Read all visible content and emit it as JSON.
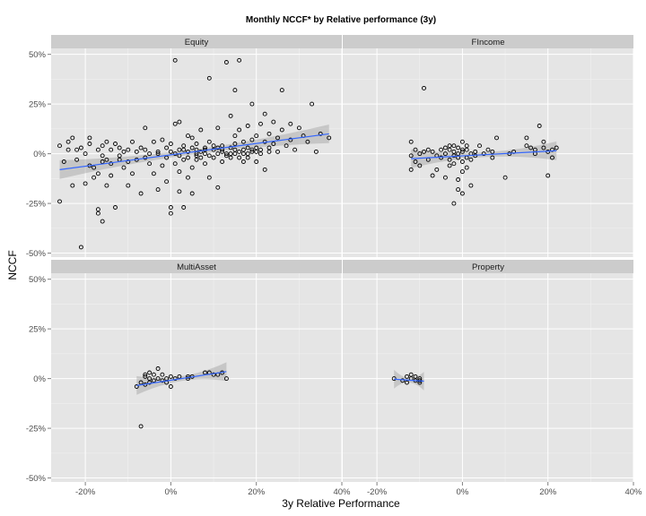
{
  "chart_data": {
    "type": "scatter",
    "title": "Monthly NCCF* by Relative performance (3y)",
    "xlabel": "3y Relative Performance",
    "ylabel": "NCCF",
    "xlim": [
      -0.28,
      0.4
    ],
    "ylim": [
      -0.52,
      0.53
    ],
    "x_ticks": [
      -0.2,
      0,
      0.2,
      0.4
    ],
    "x_tick_labels": [
      "-20%",
      "0%",
      "20%",
      "40%"
    ],
    "y_ticks": [
      -0.5,
      -0.25,
      0,
      0.25,
      0.5
    ],
    "y_tick_labels": [
      "-50%",
      "-25%",
      "0%",
      "25%",
      "50%"
    ],
    "grid": true,
    "fit_color": "#3366ff",
    "facets": [
      {
        "name": "Equity",
        "fit": {
          "x0": -0.26,
          "y0": -0.08,
          "x1": 0.37,
          "y1": 0.1
        },
        "points": [
          [
            -0.26,
            0.04
          ],
          [
            -0.26,
            -0.24
          ],
          [
            -0.25,
            -0.04
          ],
          [
            -0.24,
            0.02
          ],
          [
            -0.24,
            0.06
          ],
          [
            -0.23,
            -0.16
          ],
          [
            -0.23,
            0.08
          ],
          [
            -0.22,
            0.02
          ],
          [
            -0.22,
            -0.03
          ],
          [
            -0.21,
            -0.47
          ],
          [
            -0.21,
            0.03
          ],
          [
            -0.2,
            -0.15
          ],
          [
            -0.2,
            0.0
          ],
          [
            -0.19,
            -0.06
          ],
          [
            -0.19,
            0.05
          ],
          [
            -0.19,
            0.08
          ],
          [
            -0.18,
            -0.12
          ],
          [
            -0.18,
            -0.07
          ],
          [
            -0.17,
            -0.3
          ],
          [
            -0.17,
            -0.28
          ],
          [
            -0.17,
            0.02
          ],
          [
            -0.17,
            -0.1
          ],
          [
            -0.16,
            -0.04
          ],
          [
            -0.16,
            0.04
          ],
          [
            -0.16,
            -0.01
          ],
          [
            -0.16,
            -0.34
          ],
          [
            -0.15,
            0.06
          ],
          [
            -0.15,
            -0.03
          ],
          [
            -0.15,
            -0.16
          ],
          [
            -0.14,
            0.02
          ],
          [
            -0.14,
            -0.11
          ],
          [
            -0.14,
            -0.05
          ],
          [
            -0.13,
            -0.27
          ],
          [
            -0.13,
            0.05
          ],
          [
            -0.12,
            -0.03
          ],
          [
            -0.12,
            0.03
          ],
          [
            -0.11,
            -0.07
          ],
          [
            -0.11,
            0.01
          ],
          [
            -0.1,
            -0.16
          ],
          [
            -0.1,
            -0.04
          ],
          [
            -0.1,
            0.02
          ],
          [
            -0.09,
            -0.1
          ],
          [
            -0.09,
            0.06
          ],
          [
            -0.08,
            -0.03
          ],
          [
            -0.08,
            0.01
          ],
          [
            -0.07,
            -0.2
          ],
          [
            -0.07,
            0.03
          ],
          [
            -0.06,
            0.13
          ],
          [
            -0.06,
            -0.02
          ],
          [
            -0.05,
            -0.05
          ],
          [
            -0.05,
            0.0
          ],
          [
            -0.04,
            0.06
          ],
          [
            -0.04,
            -0.1
          ],
          [
            -0.03,
            -0.18
          ],
          [
            -0.03,
            0.01
          ],
          [
            -0.02,
            -0.06
          ],
          [
            -0.02,
            0.07
          ],
          [
            -0.01,
            -0.02
          ],
          [
            -0.01,
            0.03
          ],
          [
            -0.01,
            -0.14
          ],
          [
            0.0,
            -0.27
          ],
          [
            0.0,
            -0.3
          ],
          [
            0.0,
            0.01
          ],
          [
            0.0,
            0.05
          ],
          [
            0.01,
            0.47
          ],
          [
            0.01,
            -0.05
          ],
          [
            0.01,
            0.15
          ],
          [
            0.01,
            0.0
          ],
          [
            0.02,
            0.16
          ],
          [
            0.02,
            -0.09
          ],
          [
            0.02,
            0.02
          ],
          [
            0.02,
            -0.19
          ],
          [
            0.03,
            -0.03
          ],
          [
            0.03,
            0.04
          ],
          [
            0.03,
            -0.27
          ],
          [
            0.04,
            0.09
          ],
          [
            0.04,
            -0.12
          ],
          [
            0.04,
            0.01
          ],
          [
            0.04,
            -0.02
          ],
          [
            0.05,
            -0.07
          ],
          [
            0.05,
            0.03
          ],
          [
            0.05,
            0.08
          ],
          [
            0.05,
            -0.2
          ],
          [
            0.06,
            -0.03
          ],
          [
            0.06,
            0.0
          ],
          [
            0.06,
            0.05
          ],
          [
            0.06,
            0.02
          ],
          [
            0.07,
            0.01
          ],
          [
            0.07,
            -0.02
          ],
          [
            0.07,
            0.12
          ],
          [
            0.08,
            -0.05
          ],
          [
            0.08,
            0.03
          ],
          [
            0.08,
            0.0
          ],
          [
            0.09,
            0.38
          ],
          [
            0.09,
            -0.01
          ],
          [
            0.09,
            0.06
          ],
          [
            0.09,
            -0.12
          ],
          [
            0.1,
            0.02
          ],
          [
            0.1,
            0.04
          ],
          [
            0.1,
            -0.02
          ],
          [
            0.11,
            0.0
          ],
          [
            0.11,
            -0.17
          ],
          [
            0.11,
            0.13
          ],
          [
            0.12,
            0.02
          ],
          [
            0.12,
            -0.04
          ],
          [
            0.12,
            0.04
          ],
          [
            0.13,
            0.0
          ],
          [
            0.13,
            -0.01
          ],
          [
            0.13,
            0.46
          ],
          [
            0.14,
            0.19
          ],
          [
            0.14,
            -0.02
          ],
          [
            0.14,
            0.03
          ],
          [
            0.15,
            0.05
          ],
          [
            0.15,
            0.32
          ],
          [
            0.15,
            0.09
          ],
          [
            0.15,
            0.0
          ],
          [
            0.16,
            -0.02
          ],
          [
            0.16,
            0.01
          ],
          [
            0.16,
            0.12
          ],
          [
            0.16,
            0.47
          ],
          [
            0.17,
            -0.04
          ],
          [
            0.17,
            0.06
          ],
          [
            0.17,
            0.02
          ],
          [
            0.18,
            0.0
          ],
          [
            0.18,
            0.03
          ],
          [
            0.18,
            -0.02
          ],
          [
            0.18,
            0.14
          ],
          [
            0.19,
            0.01
          ],
          [
            0.19,
            0.25
          ],
          [
            0.19,
            0.07
          ],
          [
            0.2,
            0.09
          ],
          [
            0.2,
            -0.04
          ],
          [
            0.2,
            0.03
          ],
          [
            0.21,
            0.02
          ],
          [
            0.21,
            0.15
          ],
          [
            0.21,
            0.0
          ],
          [
            0.22,
            -0.08
          ],
          [
            0.22,
            0.06
          ],
          [
            0.22,
            0.2
          ],
          [
            0.23,
            0.03
          ],
          [
            0.23,
            0.1
          ],
          [
            0.24,
            0.05
          ],
          [
            0.24,
            0.16
          ],
          [
            0.25,
            0.01
          ],
          [
            0.25,
            0.08
          ],
          [
            0.26,
            0.32
          ],
          [
            0.26,
            0.12
          ],
          [
            0.27,
            0.04
          ],
          [
            0.28,
            0.15
          ],
          [
            0.28,
            0.07
          ],
          [
            0.29,
            0.02
          ],
          [
            0.3,
            0.13
          ],
          [
            0.31,
            0.09
          ],
          [
            0.32,
            0.06
          ],
          [
            0.33,
            0.25
          ],
          [
            0.34,
            0.01
          ],
          [
            0.35,
            0.1
          ],
          [
            0.37,
            0.08
          ],
          [
            -0.12,
            -0.01
          ],
          [
            -0.06,
            0.02
          ],
          [
            -0.03,
            0.0
          ],
          [
            0.02,
            -0.01
          ],
          [
            0.03,
            0.02
          ],
          [
            0.06,
            -0.01
          ],
          [
            0.08,
            0.02
          ],
          [
            0.11,
            0.03
          ],
          [
            0.12,
            0.01
          ],
          [
            0.14,
            0.0
          ],
          [
            0.15,
            0.02
          ],
          [
            0.17,
            0.0
          ],
          [
            0.19,
            0.02
          ],
          [
            0.2,
            0.01
          ],
          [
            0.23,
            0.01
          ]
        ]
      },
      {
        "name": "FIncome",
        "fit": {
          "x0": -0.12,
          "y0": -0.025,
          "x1": 0.22,
          "y1": 0.015
        },
        "points": [
          [
            -0.12,
            0.06
          ],
          [
            -0.12,
            -0.01
          ],
          [
            -0.12,
            -0.08
          ],
          [
            -0.11,
            0.02
          ],
          [
            -0.11,
            -0.04
          ],
          [
            -0.1,
            0.0
          ],
          [
            -0.1,
            -0.06
          ],
          [
            -0.09,
            0.33
          ],
          [
            -0.09,
            0.01
          ],
          [
            -0.08,
            -0.03
          ],
          [
            -0.08,
            0.02
          ],
          [
            -0.07,
            -0.11
          ],
          [
            -0.07,
            0.01
          ],
          [
            -0.06,
            -0.01
          ],
          [
            -0.06,
            -0.08
          ],
          [
            -0.05,
            0.02
          ],
          [
            -0.05,
            -0.02
          ],
          [
            -0.04,
            0.0
          ],
          [
            -0.04,
            -0.12
          ],
          [
            -0.04,
            0.03
          ],
          [
            -0.03,
            -0.03
          ],
          [
            -0.03,
            0.02
          ],
          [
            -0.03,
            -0.06
          ],
          [
            -0.02,
            0.01
          ],
          [
            -0.02,
            -0.01
          ],
          [
            -0.02,
            -0.25
          ],
          [
            -0.02,
            0.04
          ],
          [
            -0.01,
            -0.02
          ],
          [
            -0.01,
            0.0
          ],
          [
            -0.01,
            -0.13
          ],
          [
            -0.01,
            -0.18
          ],
          [
            -0.01,
            0.03
          ],
          [
            0.0,
            -0.04
          ],
          [
            0.0,
            0.01
          ],
          [
            0.0,
            -0.09
          ],
          [
            0.0,
            -0.2
          ],
          [
            0.0,
            0.06
          ],
          [
            0.01,
            -0.02
          ],
          [
            0.01,
            0.02
          ],
          [
            0.01,
            -0.07
          ],
          [
            0.02,
            0.0
          ],
          [
            0.02,
            -0.03
          ],
          [
            0.02,
            -0.16
          ],
          [
            0.03,
            0.01
          ],
          [
            0.03,
            -0.01
          ],
          [
            0.04,
            0.04
          ],
          [
            0.05,
            0.0
          ],
          [
            0.06,
            0.02
          ],
          [
            0.07,
            -0.02
          ],
          [
            0.07,
            0.01
          ],
          [
            0.08,
            0.08
          ],
          [
            0.1,
            -0.12
          ],
          [
            0.11,
            0.0
          ],
          [
            0.12,
            0.01
          ],
          [
            0.15,
            0.04
          ],
          [
            0.15,
            0.08
          ],
          [
            0.16,
            0.03
          ],
          [
            0.17,
            0.0
          ],
          [
            0.17,
            0.02
          ],
          [
            0.18,
            0.14
          ],
          [
            0.19,
            0.03
          ],
          [
            0.19,
            0.06
          ],
          [
            0.2,
            -0.11
          ],
          [
            0.2,
            0.01
          ],
          [
            0.21,
            -0.02
          ],
          [
            0.21,
            0.02
          ],
          [
            0.22,
            0.03
          ],
          [
            -0.03,
            0.04
          ],
          [
            0.0,
            0.02
          ],
          [
            0.01,
            0.04
          ],
          [
            -0.02,
            -0.05
          ]
        ]
      },
      {
        "name": "MultiAsset",
        "fit": {
          "x0": -0.08,
          "y0": -0.035,
          "x1": 0.13,
          "y1": 0.035
        },
        "points": [
          [
            -0.08,
            -0.04
          ],
          [
            -0.07,
            -0.02
          ],
          [
            -0.07,
            -0.24
          ],
          [
            -0.06,
            0.01
          ],
          [
            -0.06,
            -0.03
          ],
          [
            -0.06,
            0.02
          ],
          [
            -0.05,
            0.0
          ],
          [
            -0.05,
            -0.02
          ],
          [
            -0.04,
            0.02
          ],
          [
            -0.04,
            -0.01
          ],
          [
            -0.03,
            0.05
          ],
          [
            -0.03,
            0.0
          ],
          [
            -0.02,
            -0.01
          ],
          [
            -0.02,
            0.02
          ],
          [
            -0.01,
            0.0
          ],
          [
            -0.01,
            -0.02
          ],
          [
            0.0,
            0.01
          ],
          [
            0.0,
            -0.04
          ],
          [
            0.01,
            0.0
          ],
          [
            0.02,
            0.01
          ],
          [
            0.04,
            0.0
          ],
          [
            0.05,
            0.01
          ],
          [
            0.08,
            0.03
          ],
          [
            0.09,
            0.03
          ],
          [
            0.1,
            0.02
          ],
          [
            0.11,
            0.02
          ],
          [
            0.12,
            0.03
          ],
          [
            0.13,
            0.0
          ],
          [
            0.04,
            0.01
          ],
          [
            -0.05,
            0.03
          ]
        ]
      },
      {
        "name": "Property",
        "fit": {
          "x0": -0.16,
          "y0": -0.003,
          "x1": -0.09,
          "y1": -0.013
        },
        "points": [
          [
            -0.16,
            0.0
          ],
          [
            -0.14,
            -0.01
          ],
          [
            -0.13,
            0.01
          ],
          [
            -0.13,
            -0.02
          ],
          [
            -0.12,
            0.02
          ],
          [
            -0.12,
            0.0
          ],
          [
            -0.11,
            -0.01
          ],
          [
            -0.11,
            0.01
          ],
          [
            -0.1,
            -0.01
          ],
          [
            -0.1,
            -0.02
          ],
          [
            -0.1,
            -0.01
          ],
          [
            -0.1,
            0.0
          ]
        ]
      }
    ]
  }
}
